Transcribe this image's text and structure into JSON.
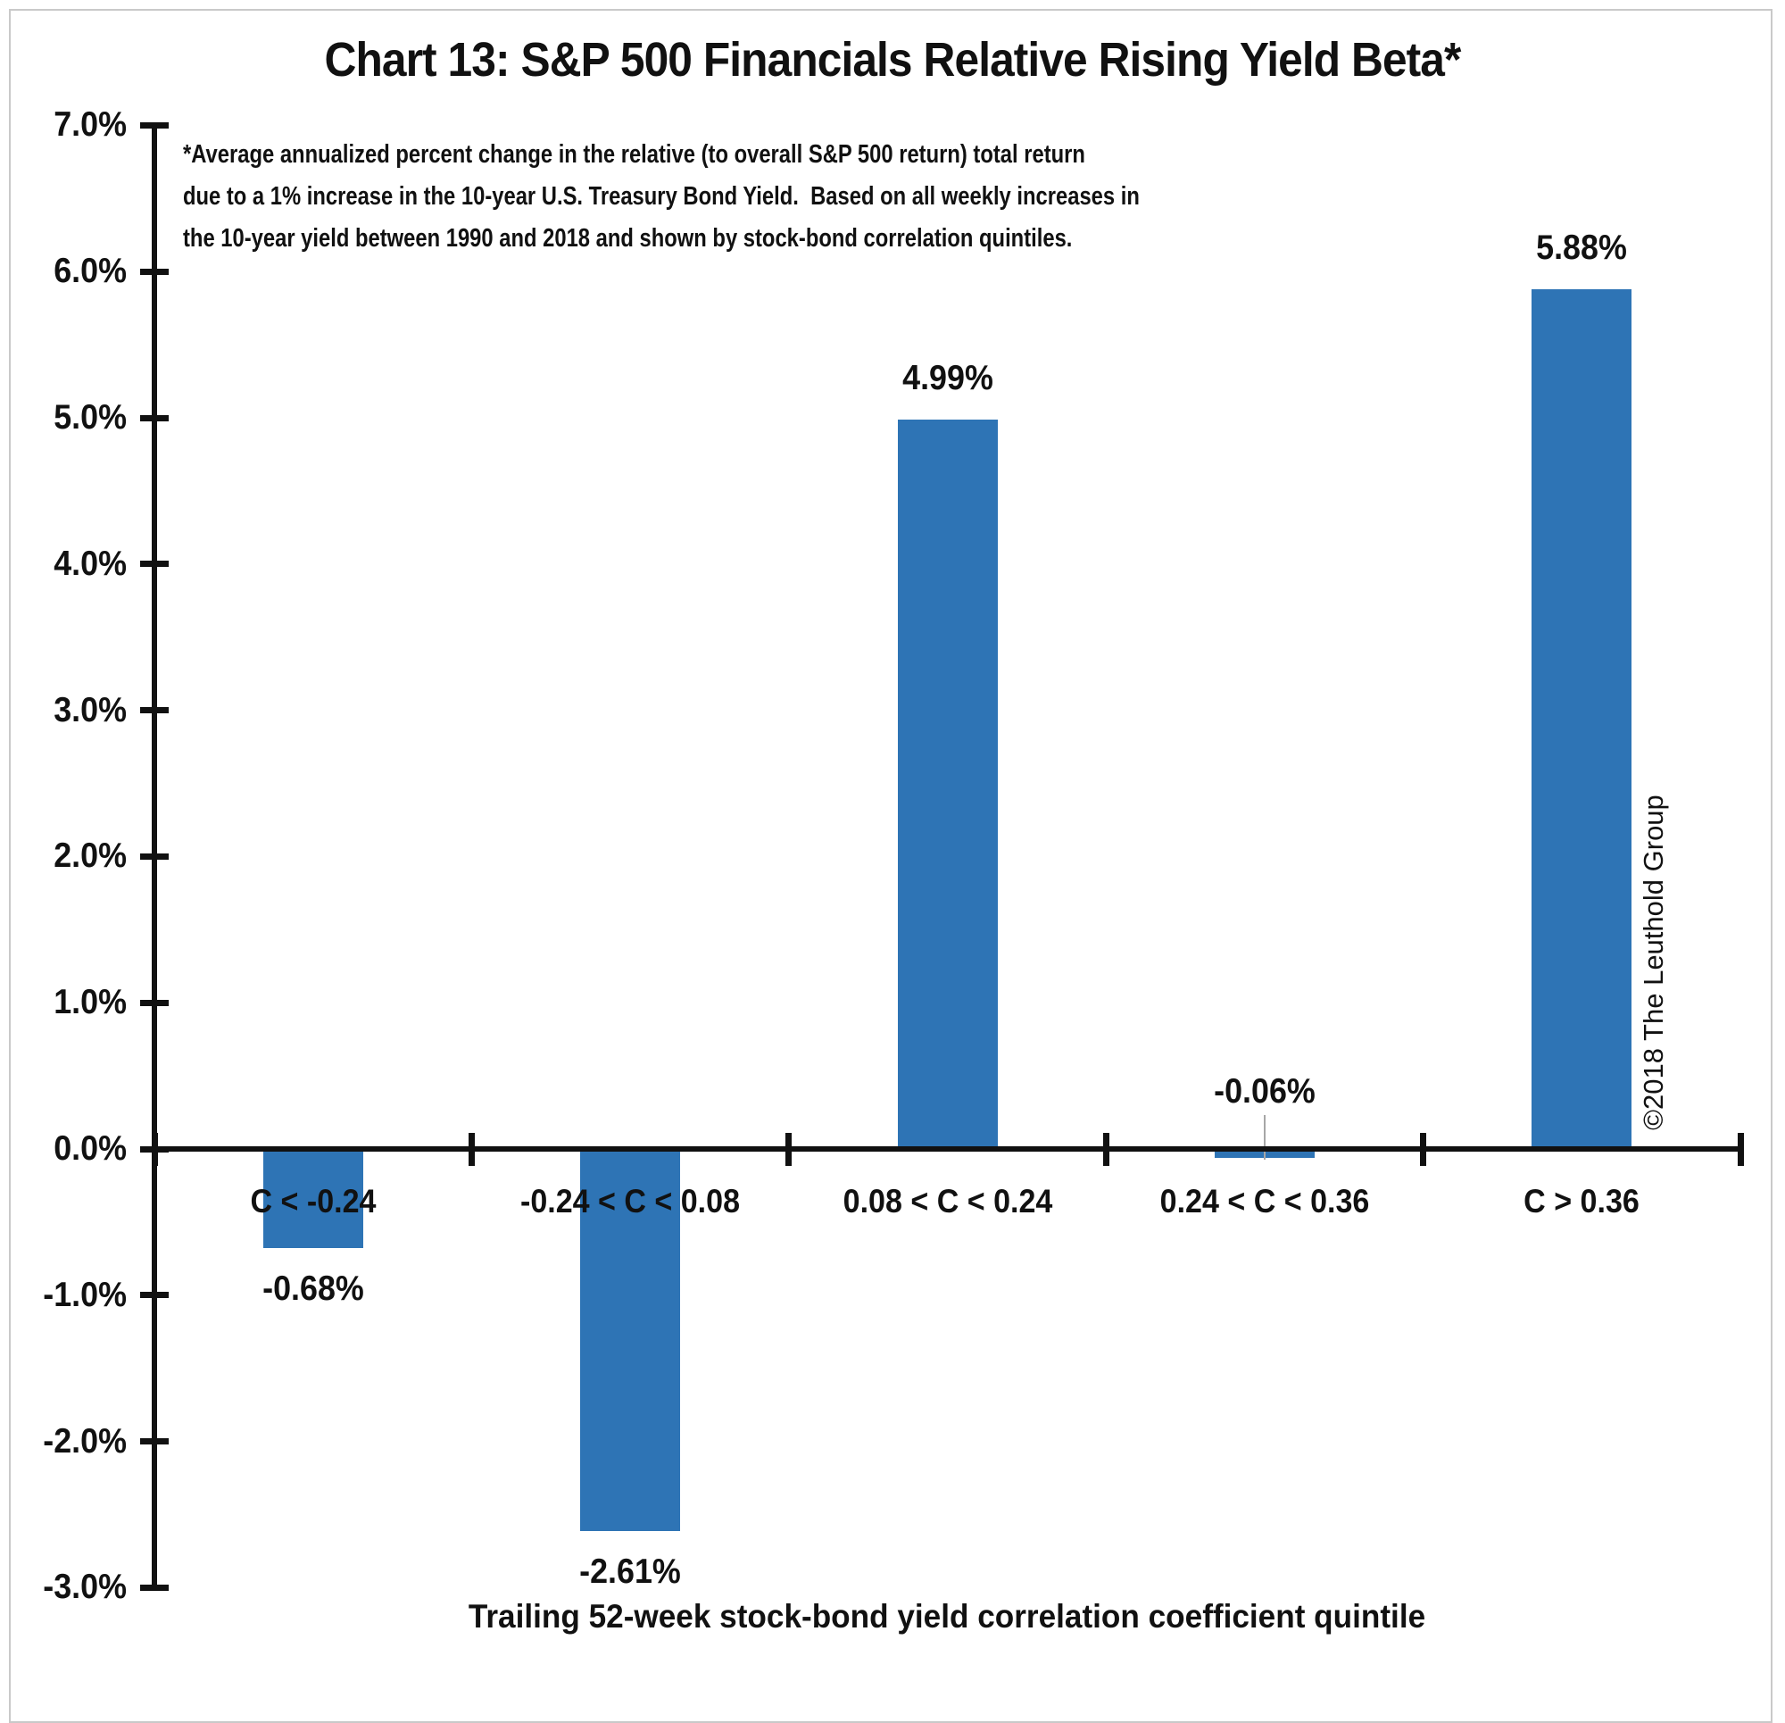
{
  "title": "Chart 13: S&P 500 Financials Relative Rising Yield Beta*",
  "footnote": {
    "line1": "*Average annualized percent change in the relative (to overall S&P 500 return) total return",
    "line2": "due to a 1% increase in the 10-year U.S. Treasury Bond Yield.  Based on all weekly increases in",
    "line3": "the 10-year yield between 1990 and 2018 and shown by stock-bond correlation quintiles."
  },
  "watermark": "©2018 The Leuthold Group",
  "colors": {
    "bar": "#2E74B5",
    "axis": "#111111",
    "text": "#111111",
    "frame": "#c9c9c9",
    "leader": "#a6a6a6",
    "background": "#ffffff"
  },
  "chart_data": {
    "type": "bar",
    "title": "Chart 13: S&P 500 Financials Relative Rising Yield Beta*",
    "categories": [
      "C < -0.24",
      "-0.24 < C < 0.08",
      "0.08 < C < 0.24",
      "0.24 < C < 0.36",
      "C > 0.36"
    ],
    "values": [
      -0.68,
      -2.61,
      4.99,
      -0.06,
      5.88
    ],
    "value_labels": [
      "-0.68%",
      "-2.61%",
      "4.99%",
      "-0.06%",
      "5.88%"
    ],
    "xlabel": "Trailing 52-week stock-bond yield correlation coefficient quintile",
    "ylabel": "",
    "ylim": [
      -3,
      7
    ],
    "ytick_values": [
      7,
      6,
      5,
      4,
      3,
      2,
      1,
      0,
      -1,
      -2,
      -3
    ],
    "ytick_labels": [
      "7.0%",
      "6.0%",
      "5.0%",
      "4.0%",
      "3.0%",
      "2.0%",
      "1.0%",
      "0.0%",
      "-1.0%",
      "-2.0%",
      "-3.0%"
    ],
    "grid": false,
    "legend": null,
    "bar_color": "#2E74B5"
  }
}
